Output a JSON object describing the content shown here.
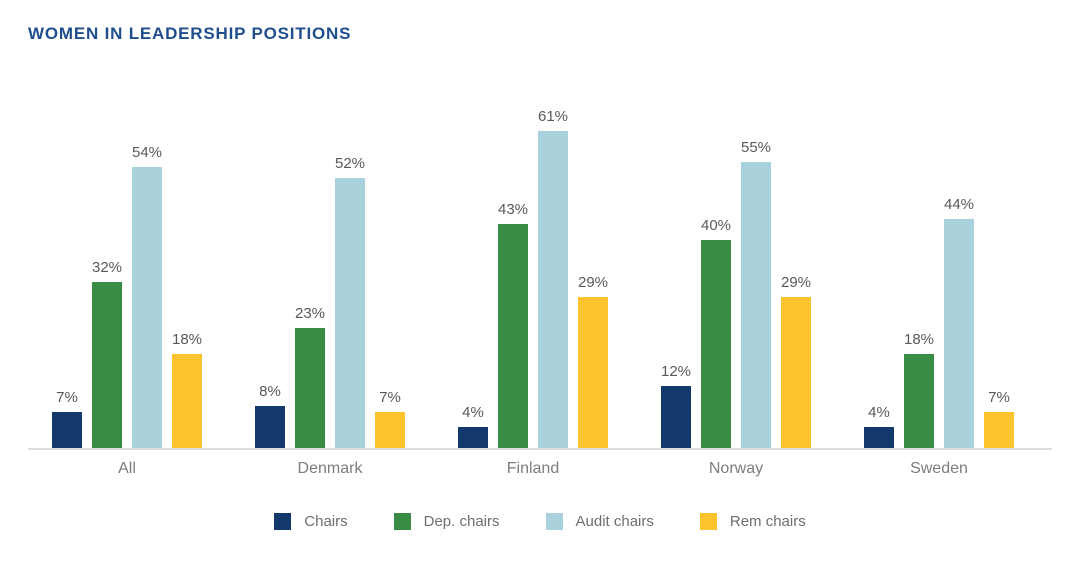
{
  "title": "WOMEN IN LEADERSHIP POSITIONS",
  "colors": {
    "title_text": "#1f4e8f",
    "value_label": "#595959",
    "category_label": "#7d7d7d",
    "legend_label": "#6e6e6e",
    "axis_line": "#dcdcdc"
  },
  "chart_data": {
    "type": "bar",
    "title": "WOMEN IN LEADERSHIP POSITIONS",
    "categories": [
      "All",
      "Denmark",
      "Finland",
      "Norway",
      "Sweden"
    ],
    "series": [
      {
        "name": "Chairs",
        "color": "#13396c",
        "values": [
          7,
          8,
          4,
          12,
          4
        ]
      },
      {
        "name": "Dep. chairs",
        "color": "#3a8b43",
        "values": [
          32,
          23,
          43,
          40,
          18
        ]
      },
      {
        "name": "Audit chairs",
        "color": "#a9d2dc",
        "values": [
          54,
          52,
          61,
          55,
          44
        ]
      },
      {
        "name": "Rem chairs",
        "color": "#fbc42c",
        "values": [
          18,
          7,
          29,
          29,
          7
        ]
      }
    ],
    "value_suffix": "%",
    "data_labels": true,
    "xlabel": "",
    "ylabel": "",
    "ylim": [
      0,
      65
    ],
    "grid": false,
    "legend_position": "bottom"
  }
}
